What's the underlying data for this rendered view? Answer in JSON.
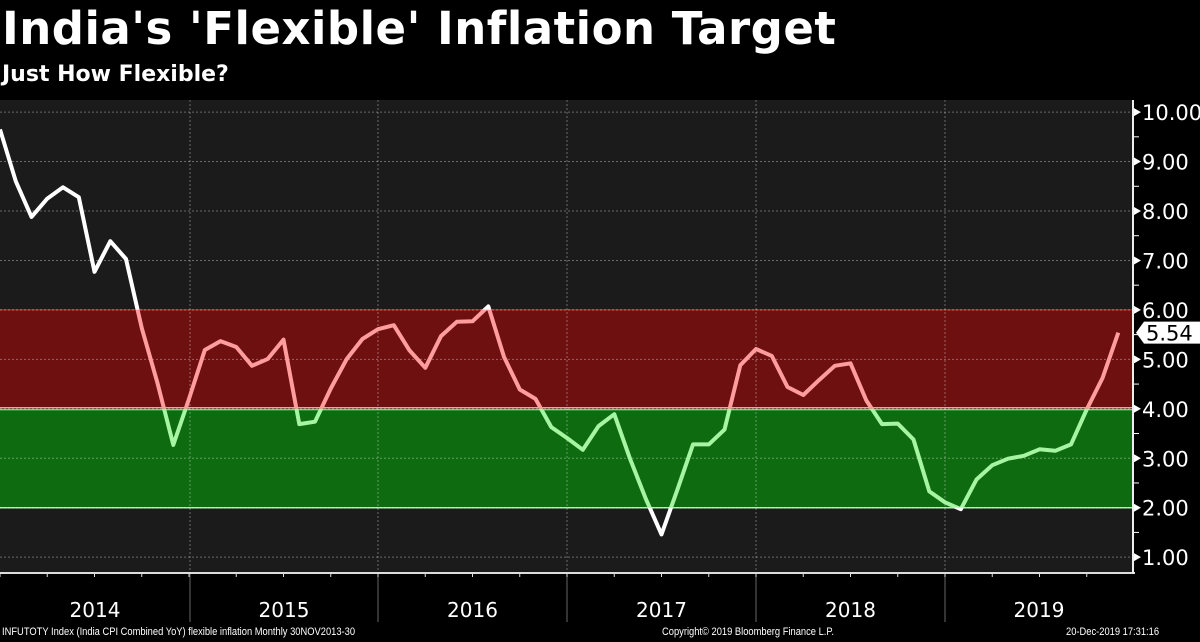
{
  "chart_data": {
    "type": "line",
    "title": "India's 'Flexible' Inflation Target",
    "subtitle": "Just How Flexible?",
    "frequency": "monthly",
    "x_start": "2013-12",
    "x_end": "2019-11",
    "x_tick_labels": [
      "2014",
      "2015",
      "2016",
      "2017",
      "2018",
      "2019"
    ],
    "y_tick_labels": [
      "10.00",
      "9.00",
      "8.00",
      "7.00",
      "6.00",
      "5.00",
      "4.00",
      "3.00",
      "2.00",
      "1.00"
    ],
    "ylim": [
      0.7,
      10.2
    ],
    "y_axis_side": "right",
    "grid": true,
    "bands": [
      {
        "from": 4,
        "to": 6,
        "color": "#6e1010"
      },
      {
        "from": 2,
        "to": 4,
        "color": "#0f6b10"
      }
    ],
    "line_colors": {
      "above_band": "#ffffff",
      "in_upper_band": "#ff9d9d",
      "in_lower_band": "#a6f5a2",
      "below_band": "#ffffff"
    },
    "last_value_label": "5.54",
    "values": [
      9.65,
      8.6,
      7.88,
      8.25,
      8.48,
      8.28,
      6.77,
      7.39,
      7.03,
      5.63,
      4.52,
      3.27,
      4.2,
      5.19,
      5.37,
      5.25,
      4.87,
      5.01,
      5.4,
      3.69,
      3.74,
      4.41,
      5.0,
      5.41,
      5.61,
      5.69,
      5.18,
      4.83,
      5.47,
      5.76,
      5.77,
      6.07,
      5.05,
      4.39,
      4.2,
      3.63,
      3.41,
      3.17,
      3.65,
      3.89,
      2.99,
      2.18,
      1.46,
      2.36,
      3.28,
      3.28,
      3.58,
      4.88,
      5.21,
      5.07,
      4.44,
      4.28,
      4.58,
      4.87,
      4.92,
      4.17,
      3.69,
      3.7,
      3.38,
      2.33,
      2.11,
      1.97,
      2.57,
      2.86,
      2.99,
      3.05,
      3.18,
      3.15,
      3.28,
      3.99,
      4.62,
      5.54
    ]
  },
  "footer": {
    "source": "INFUTOTY Index (India CPI Combined YoY) flexible inflation  Monthly 30NOV2013-30",
    "copyright": "Copyright© 2019 Bloomberg Finance L.P.",
    "timestamp": "20-Dec-2019 17:31:16"
  }
}
